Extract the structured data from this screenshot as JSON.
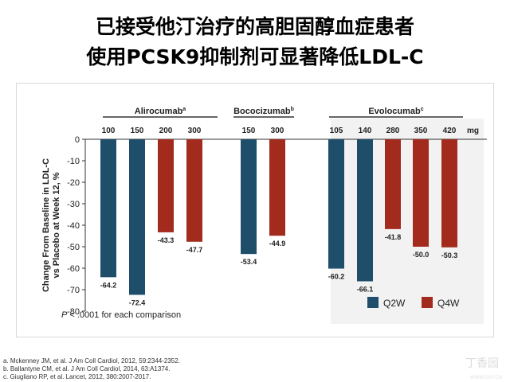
{
  "title_line1": "已接受他汀治疗的高胆固醇血症患者",
  "title_line2": "使用PCSK9抑制剂可显著降低LDL-C",
  "colors": {
    "q2w": "#1f4e6b",
    "q4w": "#a32b1e"
  },
  "chart_data": {
    "type": "bar",
    "ylabel_lines": [
      "Change From Baseline in LDL-C",
      "vs Placebo at Week 12, %"
    ],
    "ylim": [
      -80,
      0
    ],
    "yticks": [
      0,
      -10,
      -20,
      -30,
      -40,
      -50,
      -60,
      -70,
      -80
    ],
    "unit": "mg",
    "groups": [
      {
        "name": "Alirocumab",
        "sup": "a",
        "doses": [
          "100",
          "150",
          "200",
          "300"
        ],
        "values": [
          -64.2,
          -72.4,
          -43.3,
          -47.7
        ],
        "labels": [
          "-64.2",
          "-72.4",
          "-43.3",
          "-47.7"
        ],
        "regimen": [
          "Q2W",
          "Q2W",
          "Q4W",
          "Q4W"
        ]
      },
      {
        "name": "Bococizumab",
        "sup": "b",
        "doses": [
          "150",
          "300"
        ],
        "values": [
          -53.4,
          -44.9
        ],
        "labels": [
          "-53.4",
          "-44.9"
        ],
        "regimen": [
          "Q2W",
          "Q4W"
        ]
      },
      {
        "name": "Evolocumab",
        "sup": "c",
        "doses": [
          "105",
          "140",
          "280",
          "350",
          "420"
        ],
        "values": [
          -60.2,
          -66.1,
          -41.8,
          -50.0,
          -50.3
        ],
        "labels": [
          "-60.2",
          "-66.1",
          "-41.8",
          "-50.0",
          "-50.3"
        ],
        "regimen": [
          "Q2W",
          "Q2W",
          "Q4W",
          "Q4W",
          "Q4W"
        ]
      }
    ],
    "legend": [
      "Q2W",
      "Q4W"
    ],
    "legend_position": "bottom-right",
    "note_p": "P",
    "note_rest": " < .0001 for each comparison"
  },
  "references": [
    "a. Mckenney JM, et al. J Am Coll Cardiol, 2012, 59:2344-2352.",
    "b. Ballantyne CM, et al. J Am Coll Cardiol, 2014, 63:A1374.",
    "c. Giugliano RP, et al. Lancet, 2012, 380:2007-2017."
  ],
  "watermark": "丁香园",
  "watermark_url": "WWW.DXY.CN"
}
